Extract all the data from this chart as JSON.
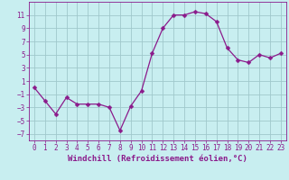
{
  "x": [
    0,
    1,
    2,
    3,
    4,
    5,
    6,
    7,
    8,
    9,
    10,
    11,
    12,
    13,
    14,
    15,
    16,
    17,
    18,
    19,
    20,
    21,
    22,
    23
  ],
  "y": [
    0.0,
    -2.0,
    -4.0,
    -1.5,
    -2.5,
    -2.5,
    -2.5,
    -3.0,
    -6.5,
    -2.8,
    -0.5,
    5.2,
    9.0,
    11.0,
    11.0,
    11.5,
    11.2,
    10.0,
    6.0,
    4.2,
    3.8,
    5.0,
    4.5,
    5.2
  ],
  "line_color": "#8b1a8b",
  "marker": "D",
  "marker_size": 2.5,
  "background_color": "#c8eef0",
  "grid_color": "#a0c8cc",
  "xlabel": "Windchill (Refroidissement éolien,°C)",
  "ylim": [
    -8,
    13
  ],
  "xlim": [
    -0.5,
    23.5
  ],
  "yticks": [
    -7,
    -5,
    -3,
    -1,
    1,
    3,
    5,
    7,
    9,
    11
  ],
  "xticks": [
    0,
    1,
    2,
    3,
    4,
    5,
    6,
    7,
    8,
    9,
    10,
    11,
    12,
    13,
    14,
    15,
    16,
    17,
    18,
    19,
    20,
    21,
    22,
    23
  ],
  "tick_color": "#8b1a8b",
  "label_color": "#8b1a8b",
  "tick_fontsize": 5.5,
  "xlabel_fontsize": 6.5
}
